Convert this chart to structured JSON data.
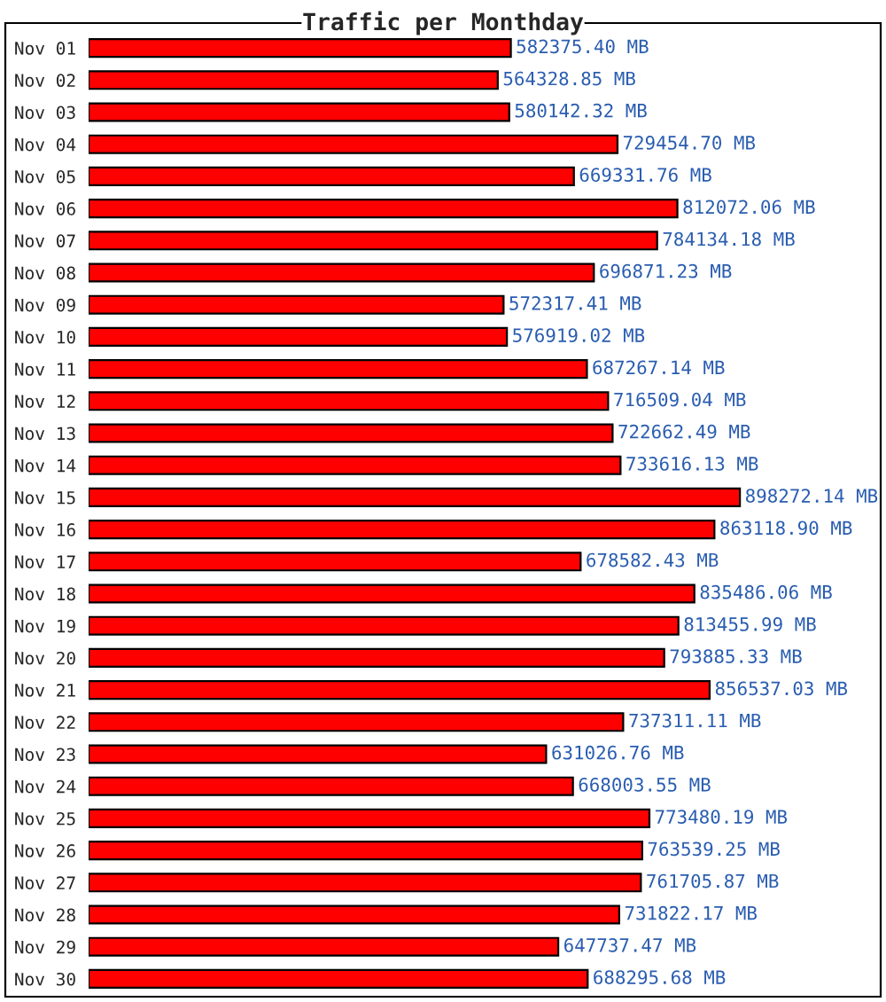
{
  "chart_data": {
    "type": "bar",
    "orientation": "horizontal",
    "title": "Traffic per Monthday",
    "categories": [
      "Nov 01",
      "Nov 02",
      "Nov 03",
      "Nov 04",
      "Nov 05",
      "Nov 06",
      "Nov 07",
      "Nov 08",
      "Nov 09",
      "Nov 10",
      "Nov 11",
      "Nov 12",
      "Nov 13",
      "Nov 14",
      "Nov 15",
      "Nov 16",
      "Nov 17",
      "Nov 18",
      "Nov 19",
      "Nov 20",
      "Nov 21",
      "Nov 22",
      "Nov 23",
      "Nov 24",
      "Nov 25",
      "Nov 26",
      "Nov 27",
      "Nov 28",
      "Nov 29",
      "Nov 30"
    ],
    "values": [
      582375.4,
      564328.85,
      580142.32,
      729454.7,
      669331.76,
      812072.06,
      784134.18,
      696871.23,
      572317.41,
      576919.02,
      687267.14,
      716509.04,
      722662.49,
      733616.13,
      898272.14,
      863118.9,
      678582.43,
      835486.06,
      813455.99,
      793885.33,
      856537.03,
      737311.11,
      631026.76,
      668003.55,
      773480.19,
      763539.25,
      761705.87,
      731822.17,
      647737.47,
      688295.68
    ],
    "value_labels": [
      "582375.40 MB",
      "564328.85 MB",
      "580142.32 MB",
      "729454.70 MB",
      "669331.76 MB",
      "812072.06 MB",
      "784134.18 MB",
      "696871.23 MB",
      "572317.41 MB",
      "576919.02 MB",
      "687267.14 MB",
      "716509.04 MB",
      "722662.49 MB",
      "733616.13 MB",
      "898272.14 MB",
      "863118.90 MB",
      "678582.43 MB",
      "835486.06 MB",
      "813455.99 MB",
      "793885.33 MB",
      "856537.03 MB",
      "737311.11 MB",
      "631026.76 MB",
      "668003.55 MB",
      "773480.19 MB",
      "763539.25 MB",
      "761705.87 MB",
      "731822.17 MB",
      "647737.47 MB",
      "688295.68 MB"
    ],
    "color": "#ff0000",
    "xlim": [
      0,
      1090000
    ],
    "tick_labels": "y",
    "grid": false,
    "legend": false
  }
}
